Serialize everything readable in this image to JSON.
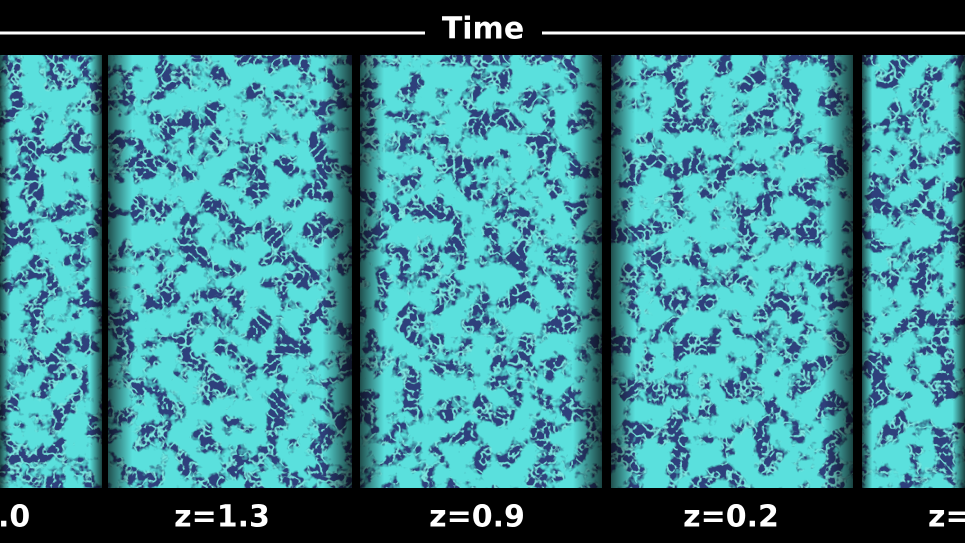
{
  "header": {
    "title": "Time"
  },
  "panels": [
    {
      "label": ".0"
    },
    {
      "label": "z=1.3"
    },
    {
      "label": "z=0.9"
    },
    {
      "label": "z=0.2"
    },
    {
      "label": "z="
    }
  ]
}
